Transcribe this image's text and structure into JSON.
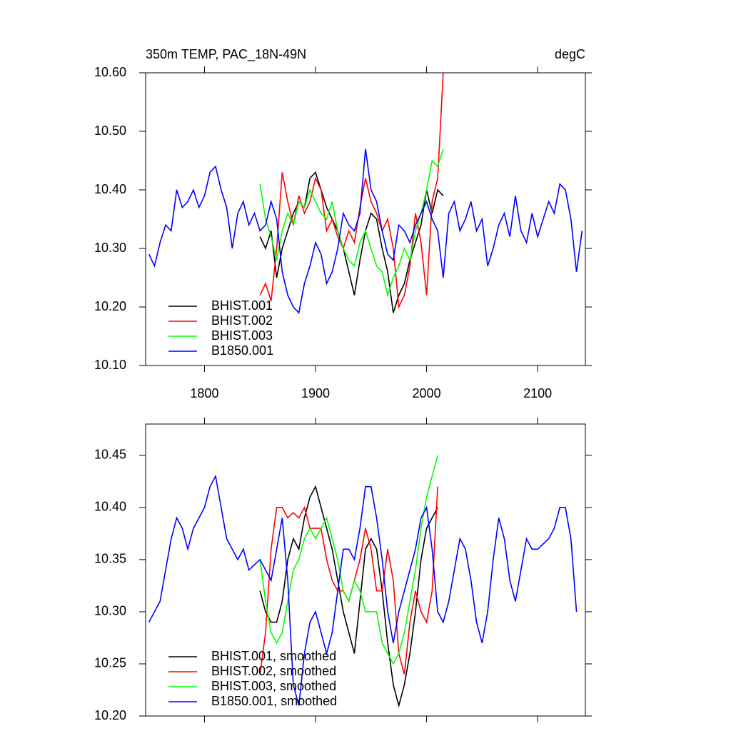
{
  "chart_data": [
    {
      "type": "line",
      "title": "350m TEMP, PAC_18N-49N",
      "right_title": "degC",
      "xlim": [
        1747,
        2143
      ],
      "ylim": [
        10.1,
        10.6
      ],
      "xticks": [
        1800,
        1900,
        2000,
        2100
      ],
      "show_xtick_labels": true,
      "yticks": [
        {
          "value": 10.1,
          "label": "10.10"
        },
        {
          "value": 10.2,
          "label": "10.20"
        },
        {
          "value": 10.3,
          "label": "10.30"
        },
        {
          "value": 10.4,
          "label": "10.40"
        },
        {
          "value": 10.5,
          "label": "10.50"
        },
        {
          "value": 10.6,
          "label": "10.60"
        }
      ],
      "legend": "lower left",
      "series": [
        {
          "name": "BHIST.001",
          "color": "#000000",
          "x": [
            1850,
            1855,
            1860,
            1865,
            1870,
            1875,
            1880,
            1885,
            1890,
            1895,
            1900,
            1905,
            1910,
            1915,
            1920,
            1925,
            1930,
            1935,
            1940,
            1945,
            1950,
            1955,
            1960,
            1965,
            1970,
            1975,
            1980,
            1985,
            1990,
            1995,
            2000,
            2005,
            2010,
            2015
          ],
          "values": [
            10.32,
            10.3,
            10.33,
            10.25,
            10.3,
            10.33,
            10.36,
            10.38,
            10.37,
            10.42,
            10.43,
            10.4,
            10.37,
            10.35,
            10.33,
            10.3,
            10.26,
            10.22,
            10.28,
            10.33,
            10.36,
            10.35,
            10.3,
            10.26,
            10.19,
            10.22,
            10.24,
            10.28,
            10.31,
            10.34,
            10.4,
            10.36,
            10.4,
            10.39
          ]
        },
        {
          "name": "BHIST.002",
          "color": "#ff0000",
          "x": [
            1850,
            1855,
            1860,
            1865,
            1870,
            1875,
            1880,
            1885,
            1890,
            1895,
            1900,
            1905,
            1910,
            1915,
            1920,
            1925,
            1930,
            1935,
            1940,
            1945,
            1950,
            1955,
            1960,
            1965,
            1970,
            1975,
            1980,
            1985,
            1990,
            1995,
            2000,
            2005,
            2010,
            2015
          ],
          "values": [
            10.22,
            10.24,
            10.21,
            10.3,
            10.43,
            10.38,
            10.34,
            10.39,
            10.36,
            10.38,
            10.42,
            10.4,
            10.33,
            10.35,
            10.32,
            10.3,
            10.33,
            10.31,
            10.37,
            10.42,
            10.38,
            10.36,
            10.33,
            10.35,
            10.3,
            10.2,
            10.22,
            10.27,
            10.36,
            10.31,
            10.22,
            10.38,
            10.42,
            10.6
          ]
        },
        {
          "name": "BHIST.003",
          "color": "#00ff00",
          "x": [
            1850,
            1855,
            1860,
            1865,
            1870,
            1875,
            1880,
            1885,
            1890,
            1895,
            1900,
            1905,
            1910,
            1915,
            1920,
            1925,
            1930,
            1935,
            1940,
            1945,
            1950,
            1955,
            1960,
            1965,
            1970,
            1975,
            1980,
            1985,
            1990,
            1995,
            2000,
            2005,
            2010,
            2015
          ],
          "values": [
            10.41,
            10.35,
            10.32,
            10.28,
            10.33,
            10.36,
            10.34,
            10.38,
            10.37,
            10.4,
            10.38,
            10.36,
            10.35,
            10.38,
            10.33,
            10.3,
            10.28,
            10.27,
            10.31,
            10.33,
            10.3,
            10.27,
            10.26,
            10.22,
            10.25,
            10.27,
            10.3,
            10.28,
            10.33,
            10.36,
            10.4,
            10.45,
            10.44,
            10.47
          ]
        },
        {
          "name": "B1850.001",
          "color": "#0000ff",
          "x": [
            1750,
            1755,
            1760,
            1765,
            1770,
            1775,
            1780,
            1785,
            1790,
            1795,
            1800,
            1805,
            1810,
            1815,
            1820,
            1825,
            1830,
            1835,
            1840,
            1845,
            1850,
            1855,
            1860,
            1865,
            1870,
            1875,
            1880,
            1885,
            1890,
            1895,
            1900,
            1905,
            1910,
            1915,
            1920,
            1925,
            1930,
            1935,
            1940,
            1945,
            1950,
            1955,
            1960,
            1965,
            1970,
            1975,
            1980,
            1985,
            1990,
            1995,
            2000,
            2005,
            2010,
            2015,
            2020,
            2025,
            2030,
            2035,
            2040,
            2045,
            2050,
            2055,
            2060,
            2065,
            2070,
            2075,
            2080,
            2085,
            2090,
            2095,
            2100,
            2105,
            2110,
            2115,
            2120,
            2125,
            2130,
            2135,
            2140
          ],
          "values": [
            10.29,
            10.27,
            10.31,
            10.34,
            10.33,
            10.4,
            10.37,
            10.38,
            10.4,
            10.37,
            10.39,
            10.43,
            10.44,
            10.4,
            10.37,
            10.3,
            10.36,
            10.38,
            10.34,
            10.36,
            10.33,
            10.34,
            10.38,
            10.35,
            10.26,
            10.22,
            10.2,
            10.19,
            10.24,
            10.27,
            10.31,
            10.29,
            10.24,
            10.26,
            10.3,
            10.36,
            10.34,
            10.33,
            10.36,
            10.47,
            10.4,
            10.38,
            10.33,
            10.29,
            10.28,
            10.34,
            10.33,
            10.31,
            10.34,
            10.36,
            10.38,
            10.35,
            10.33,
            10.25,
            10.36,
            10.38,
            10.33,
            10.35,
            10.38,
            10.33,
            10.35,
            10.27,
            10.3,
            10.34,
            10.36,
            10.32,
            10.39,
            10.33,
            10.31,
            10.36,
            10.32,
            10.35,
            10.38,
            10.36,
            10.41,
            10.4,
            10.35,
            10.26,
            10.33
          ]
        }
      ]
    },
    {
      "type": "line",
      "xlim": [
        1747,
        2143
      ],
      "ylim": [
        10.2,
        10.48
      ],
      "xticks": [
        1800,
        1900,
        2000,
        2100
      ],
      "show_xtick_labels": false,
      "yticks": [
        {
          "value": 10.2,
          "label": "10.20"
        },
        {
          "value": 10.25,
          "label": "10.25"
        },
        {
          "value": 10.3,
          "label": "10.30"
        },
        {
          "value": 10.35,
          "label": "10.35"
        },
        {
          "value": 10.4,
          "label": "10.40"
        },
        {
          "value": 10.45,
          "label": "10.45"
        }
      ],
      "legend": "lower left",
      "series": [
        {
          "name": "BHIST.001, smoothed",
          "color": "#000000",
          "x": [
            1850,
            1855,
            1860,
            1865,
            1870,
            1875,
            1880,
            1885,
            1890,
            1895,
            1900,
            1905,
            1910,
            1915,
            1920,
            1925,
            1930,
            1935,
            1940,
            1945,
            1950,
            1955,
            1960,
            1965,
            1970,
            1975,
            1980,
            1985,
            1990,
            1995,
            2000,
            2005,
            2010
          ],
          "values": [
            10.32,
            10.3,
            10.29,
            10.29,
            10.31,
            10.35,
            10.37,
            10.36,
            10.39,
            10.41,
            10.42,
            10.4,
            10.38,
            10.36,
            10.33,
            10.3,
            10.28,
            10.26,
            10.31,
            10.36,
            10.37,
            10.36,
            10.32,
            10.27,
            10.23,
            10.21,
            10.23,
            10.26,
            10.3,
            10.35,
            10.38,
            10.39,
            10.4
          ]
        },
        {
          "name": "BHIST.002, smoothed",
          "color": "#ff0000",
          "x": [
            1850,
            1855,
            1860,
            1865,
            1870,
            1875,
            1880,
            1885,
            1890,
            1895,
            1900,
            1905,
            1910,
            1915,
            1920,
            1925,
            1930,
            1935,
            1940,
            1945,
            1950,
            1955,
            1960,
            1965,
            1970,
            1975,
            1980,
            1985,
            1990,
            1995,
            2000,
            2005,
            2010
          ],
          "values": [
            10.24,
            10.28,
            10.36,
            10.4,
            10.4,
            10.39,
            10.395,
            10.39,
            10.4,
            10.38,
            10.38,
            10.38,
            10.35,
            10.33,
            10.32,
            10.32,
            10.31,
            10.33,
            10.35,
            10.38,
            10.36,
            10.32,
            10.32,
            10.36,
            10.33,
            10.26,
            10.24,
            10.29,
            10.32,
            10.3,
            10.29,
            10.32,
            10.42
          ]
        },
        {
          "name": "BHIST.003, smoothed",
          "color": "#00ff00",
          "x": [
            1850,
            1855,
            1860,
            1865,
            1870,
            1875,
            1880,
            1885,
            1890,
            1895,
            1900,
            1905,
            1910,
            1915,
            1920,
            1925,
            1930,
            1935,
            1940,
            1945,
            1950,
            1955,
            1960,
            1965,
            1970,
            1975,
            1980,
            1985,
            1990,
            1995,
            2000,
            2005,
            2010
          ],
          "values": [
            10.35,
            10.31,
            10.28,
            10.27,
            10.28,
            10.31,
            10.34,
            10.35,
            10.37,
            10.38,
            10.37,
            10.38,
            10.39,
            10.37,
            10.35,
            10.32,
            10.31,
            10.33,
            10.32,
            10.3,
            10.3,
            10.3,
            10.27,
            10.26,
            10.25,
            10.26,
            10.28,
            10.31,
            10.34,
            10.38,
            10.41,
            10.43,
            10.45
          ]
        },
        {
          "name": "B1850.001, smoothed",
          "color": "#0000ff",
          "x": [
            1750,
            1755,
            1760,
            1765,
            1770,
            1775,
            1780,
            1785,
            1790,
            1795,
            1800,
            1805,
            1810,
            1815,
            1820,
            1825,
            1830,
            1835,
            1840,
            1845,
            1850,
            1855,
            1860,
            1865,
            1870,
            1875,
            1880,
            1885,
            1890,
            1895,
            1900,
            1905,
            1910,
            1915,
            1920,
            1925,
            1930,
            1935,
            1940,
            1945,
            1950,
            1955,
            1960,
            1965,
            1970,
            1975,
            1980,
            1985,
            1990,
            1995,
            2000,
            2005,
            2010,
            2015,
            2020,
            2025,
            2030,
            2035,
            2040,
            2045,
            2050,
            2055,
            2060,
            2065,
            2070,
            2075,
            2080,
            2085,
            2090,
            2095,
            2100,
            2105,
            2110,
            2115,
            2120,
            2125,
            2130,
            2135
          ],
          "values": [
            10.29,
            10.3,
            10.31,
            10.34,
            10.37,
            10.39,
            10.38,
            10.36,
            10.38,
            10.39,
            10.4,
            10.42,
            10.43,
            10.4,
            10.37,
            10.36,
            10.35,
            10.36,
            10.34,
            10.345,
            10.35,
            10.34,
            10.33,
            10.36,
            10.39,
            10.33,
            10.23,
            10.21,
            10.26,
            10.29,
            10.3,
            10.28,
            10.26,
            10.28,
            10.32,
            10.36,
            10.36,
            10.35,
            10.38,
            10.42,
            10.42,
            10.39,
            10.35,
            10.3,
            10.27,
            10.3,
            10.32,
            10.34,
            10.36,
            10.39,
            10.4,
            10.36,
            10.3,
            10.29,
            10.31,
            10.34,
            10.37,
            10.36,
            10.33,
            10.29,
            10.27,
            10.3,
            10.35,
            10.39,
            10.37,
            10.33,
            10.31,
            10.34,
            10.37,
            10.36,
            10.36,
            10.365,
            10.37,
            10.38,
            10.4,
            10.4,
            10.37,
            10.3
          ]
        }
      ]
    }
  ]
}
